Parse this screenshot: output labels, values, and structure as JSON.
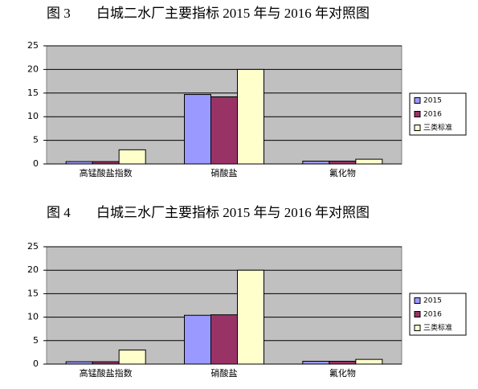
{
  "chart_data": [
    {
      "type": "bar",
      "figure_label": "图 3",
      "title": "白城二水厂主要指标 2015 年与 2016 年对照图",
      "categories": [
        "高锰酸盐指数",
        "硝酸盐",
        "氟化物"
      ],
      "series": [
        {
          "name": "2015",
          "color": "#9999ff",
          "values": [
            0.5,
            14.7,
            0.6
          ]
        },
        {
          "name": "2016",
          "color": "#993366",
          "values": [
            0.5,
            14.2,
            0.6
          ]
        },
        {
          "name": "三类标准",
          "color": "#ffffcc",
          "values": [
            3,
            20,
            1
          ]
        }
      ],
      "ylim": [
        0,
        25
      ],
      "yticks": [
        0,
        5,
        10,
        15,
        20,
        25
      ],
      "grid": true,
      "legend": "right"
    },
    {
      "type": "bar",
      "figure_label": "图 4",
      "title": "白城三水厂主要指标 2015 年与 2016 年对照图",
      "categories": [
        "高锰酸盐指数",
        "硝酸盐",
        "氟化物"
      ],
      "series": [
        {
          "name": "2015",
          "color": "#9999ff",
          "values": [
            0.5,
            10.4,
            0.6
          ]
        },
        {
          "name": "2016",
          "color": "#993366",
          "values": [
            0.5,
            10.5,
            0.6
          ]
        },
        {
          "name": "三类标准",
          "color": "#ffffcc",
          "values": [
            3,
            20,
            1
          ]
        }
      ],
      "ylim": [
        0,
        25
      ],
      "yticks": [
        0,
        5,
        10,
        15,
        20,
        25
      ],
      "grid": true,
      "legend": "right"
    }
  ]
}
